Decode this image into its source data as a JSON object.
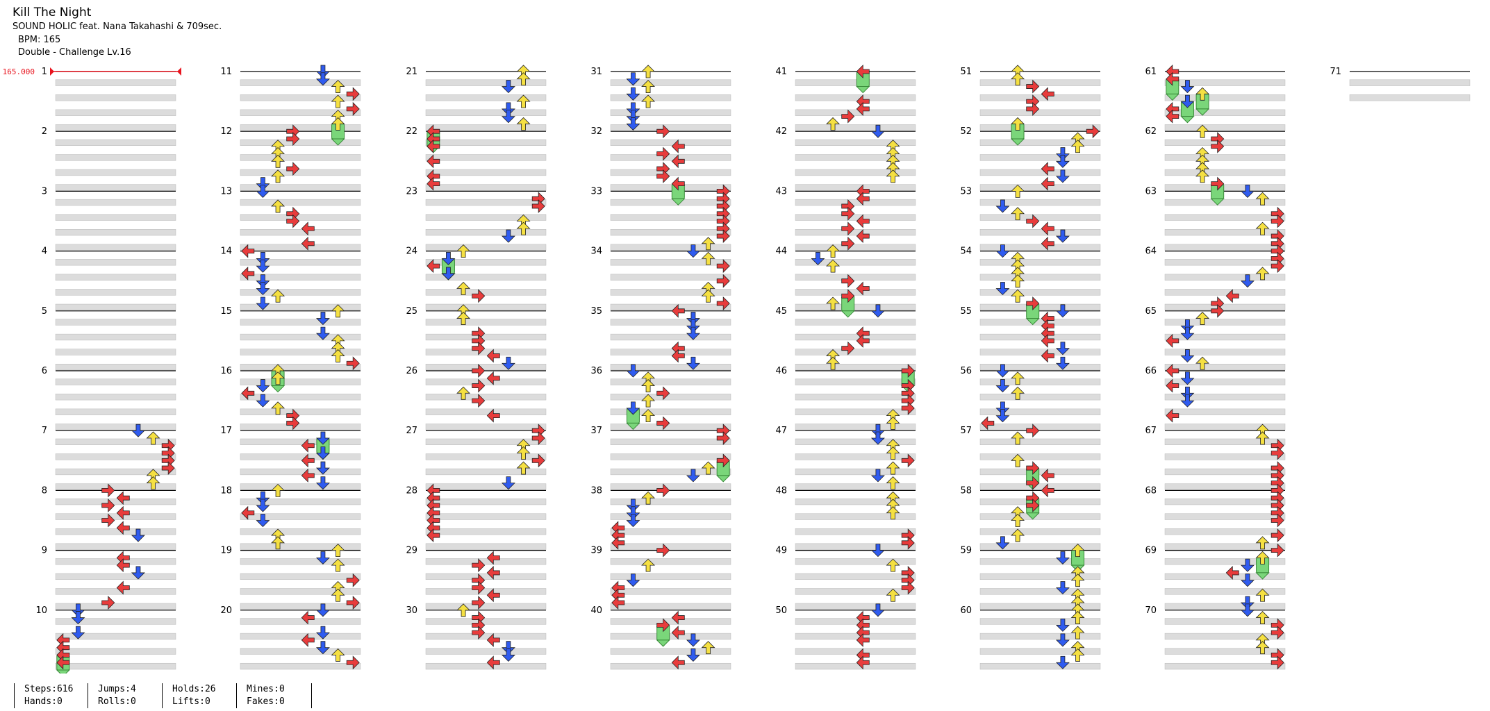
{
  "song": {
    "title": "Kill The Night",
    "artist": "SOUND HOLIC feat. Nana Takahashi & 709sec.",
    "bpm_label": "BPM: 165",
    "difficulty_label": "Double - Challenge Lv.16"
  },
  "bpm_marker": {
    "label": "165.000"
  },
  "measure_count": 71,
  "measures_per_column": 10,
  "colors": {
    "left": "#e83c3c",
    "down": "#2f5bef",
    "up": "#f5e042",
    "right": "#e83c3c",
    "hold": "#7ad67a",
    "band": "#dcdcdc",
    "bpm": "#e8141e"
  },
  "chart_data": {
    "type": "table",
    "description_free": true,
    "stats": [
      {
        "label": "Steps",
        "value": 616
      },
      {
        "label": "Jumps",
        "value": 4
      },
      {
        "label": "Holds",
        "value": 26
      },
      {
        "label": "Mines",
        "value": 0
      },
      {
        "label": "Hands",
        "value": 0
      },
      {
        "label": "Rolls",
        "value": 0
      },
      {
        "label": "Lifts",
        "value": 0
      },
      {
        "label": "Fakes",
        "value": 0
      }
    ]
  },
  "stats": {
    "steps": "Steps:616",
    "jumps": "Jumps:4",
    "holds": "Holds:26",
    "mines": "Mines:0",
    "hands": "Hands:0",
    "rolls": "Rolls:0",
    "lifts": "Lifts:0",
    "fakes": "Fakes:0"
  }
}
